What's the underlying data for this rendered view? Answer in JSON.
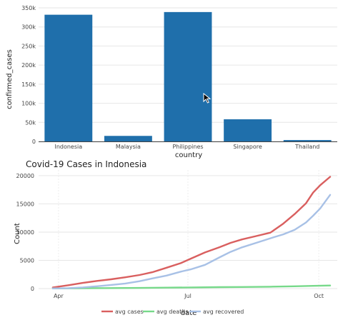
{
  "chart_data": [
    {
      "type": "bar",
      "categories": [
        "Indonesia",
        "Malaysia",
        "Philippines",
        "Singapore",
        "Thailand"
      ],
      "values": [
        332000,
        14500,
        339000,
        58000,
        3600
      ],
      "ylim": [
        0,
        350000
      ],
      "yticks": [
        0,
        50000,
        100000,
        150000,
        200000,
        250000,
        300000,
        350000
      ],
      "ytick_labels": [
        "0",
        "50k",
        "100k",
        "150k",
        "200k",
        "250k",
        "300k",
        "350k"
      ],
      "xlabel": "country",
      "ylabel": "confirmed_cases",
      "bar_color": "#1f6fab",
      "grid": true
    },
    {
      "type": "line",
      "title": "Covid-19 Cases in Indonesia",
      "xlabel": "date",
      "ylabel": "Count",
      "xticks": [
        {
          "date": "2020-04-01",
          "label": "Apr"
        },
        {
          "date": "2020-07-01",
          "label": "Jul"
        },
        {
          "date": "2020-10-01",
          "label": "Oct"
        }
      ],
      "xlim": [
        "2020-03-18",
        "2020-10-14"
      ],
      "ylim": [
        0,
        21000
      ],
      "yticks": [
        0,
        5000,
        10000,
        15000,
        20000
      ],
      "ytick_labels": [
        "0",
        "5000",
        "10000",
        "15000",
        "20000"
      ],
      "legend_position": "bottom",
      "series": [
        {
          "name": "avg cases",
          "color": "#d95f5f",
          "points": [
            [
              "2020-03-28",
              200
            ],
            [
              "2020-04-08",
              600
            ],
            [
              "2020-04-18",
              1000
            ],
            [
              "2020-04-28",
              1350
            ],
            [
              "2020-05-08",
              1650
            ],
            [
              "2020-05-18",
              2000
            ],
            [
              "2020-05-28",
              2400
            ],
            [
              "2020-06-06",
              2900
            ],
            [
              "2020-06-16",
              3700
            ],
            [
              "2020-06-26",
              4500
            ],
            [
              "2020-07-03",
              5300
            ],
            [
              "2020-07-13",
              6400
            ],
            [
              "2020-07-23",
              7300
            ],
            [
              "2020-07-31",
              8100
            ],
            [
              "2020-08-08",
              8700
            ],
            [
              "2020-08-18",
              9300
            ],
            [
              "2020-08-28",
              9900
            ],
            [
              "2020-09-06",
              11500
            ],
            [
              "2020-09-14",
              13200
            ],
            [
              "2020-09-22",
              15100
            ],
            [
              "2020-09-27",
              17000
            ],
            [
              "2020-10-02",
              18300
            ],
            [
              "2020-10-09",
              19800
            ]
          ]
        },
        {
          "name": "avg deaths",
          "color": "#77d98a",
          "points": [
            [
              "2020-03-28",
              30
            ],
            [
              "2020-04-18",
              60
            ],
            [
              "2020-05-08",
              90
            ],
            [
              "2020-05-28",
              120
            ],
            [
              "2020-06-16",
              170
            ],
            [
              "2020-07-03",
              200
            ],
            [
              "2020-07-23",
              250
            ],
            [
              "2020-08-08",
              280
            ],
            [
              "2020-08-28",
              330
            ],
            [
              "2020-09-14",
              400
            ],
            [
              "2020-09-27",
              480
            ],
            [
              "2020-10-09",
              550
            ]
          ]
        },
        {
          "name": "avg recovered",
          "color": "#a8c1e6",
          "points": [
            [
              "2020-03-28",
              20
            ],
            [
              "2020-04-08",
              80
            ],
            [
              "2020-04-18",
              200
            ],
            [
              "2020-04-28",
              400
            ],
            [
              "2020-05-08",
              650
            ],
            [
              "2020-05-18",
              900
            ],
            [
              "2020-05-28",
              1300
            ],
            [
              "2020-06-06",
              1800
            ],
            [
              "2020-06-16",
              2300
            ],
            [
              "2020-06-26",
              3000
            ],
            [
              "2020-07-03",
              3400
            ],
            [
              "2020-07-13",
              4200
            ],
            [
              "2020-07-23",
              5500
            ],
            [
              "2020-07-31",
              6500
            ],
            [
              "2020-08-08",
              7300
            ],
            [
              "2020-08-18",
              8100
            ],
            [
              "2020-08-28",
              8900
            ],
            [
              "2020-09-06",
              9600
            ],
            [
              "2020-09-14",
              10400
            ],
            [
              "2020-09-22",
              11700
            ],
            [
              "2020-09-27",
              12900
            ],
            [
              "2020-10-02",
              14200
            ],
            [
              "2020-10-09",
              16600
            ]
          ]
        }
      ]
    }
  ]
}
